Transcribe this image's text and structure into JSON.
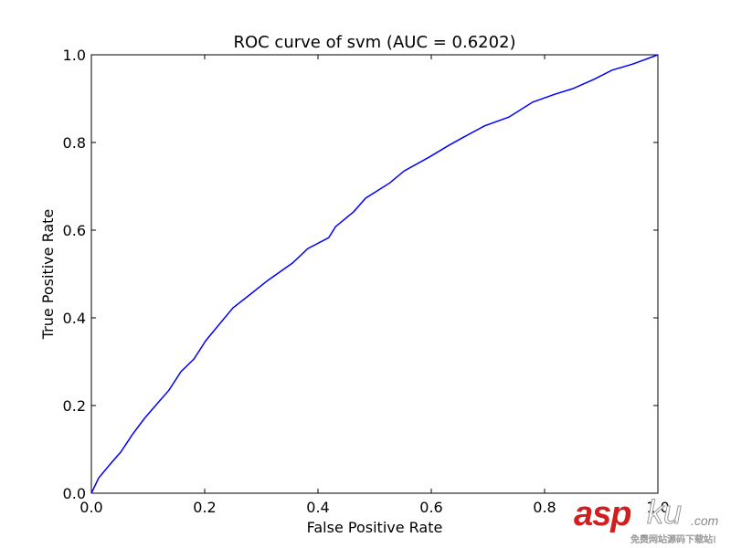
{
  "chart_data": {
    "type": "line",
    "title": "ROC curve of svm (AUC = 0.6202)",
    "xlabel": "False Positive Rate",
    "ylabel": "True Positive Rate",
    "xlim": [
      0.0,
      1.0
    ],
    "ylim": [
      0.0,
      1.0
    ],
    "xticks": [
      "0.0",
      "0.2",
      "0.4",
      "0.6",
      "0.8",
      "1.0"
    ],
    "yticks": [
      "0.0",
      "0.2",
      "0.4",
      "0.6",
      "0.8",
      "1.0"
    ],
    "grid": false,
    "legend": null,
    "series": [
      {
        "name": "svm",
        "color": "#0000ff",
        "x": [
          0.0,
          0.013,
          0.035,
          0.052,
          0.073,
          0.094,
          0.116,
          0.137,
          0.158,
          0.181,
          0.202,
          0.223,
          0.25,
          0.279,
          0.311,
          0.355,
          0.382,
          0.419,
          0.431,
          0.463,
          0.484,
          0.527,
          0.552,
          0.597,
          0.629,
          0.658,
          0.694,
          0.737,
          0.779,
          0.818,
          0.85,
          0.887,
          0.919,
          0.956,
          1.0
        ],
        "y": [
          0.0,
          0.035,
          0.069,
          0.094,
          0.135,
          0.171,
          0.204,
          0.235,
          0.277,
          0.306,
          0.348,
          0.381,
          0.423,
          0.452,
          0.485,
          0.525,
          0.558,
          0.583,
          0.608,
          0.642,
          0.673,
          0.708,
          0.735,
          0.767,
          0.792,
          0.813,
          0.838,
          0.858,
          0.892,
          0.91,
          0.923,
          0.944,
          0.965,
          0.979,
          1.0
        ]
      }
    ],
    "auc": 0.6202
  },
  "watermark": {
    "brand_red": "asp",
    "brand_outline": "ku",
    "domain": ".com",
    "tagline": "免费网站源码下载站!"
  }
}
